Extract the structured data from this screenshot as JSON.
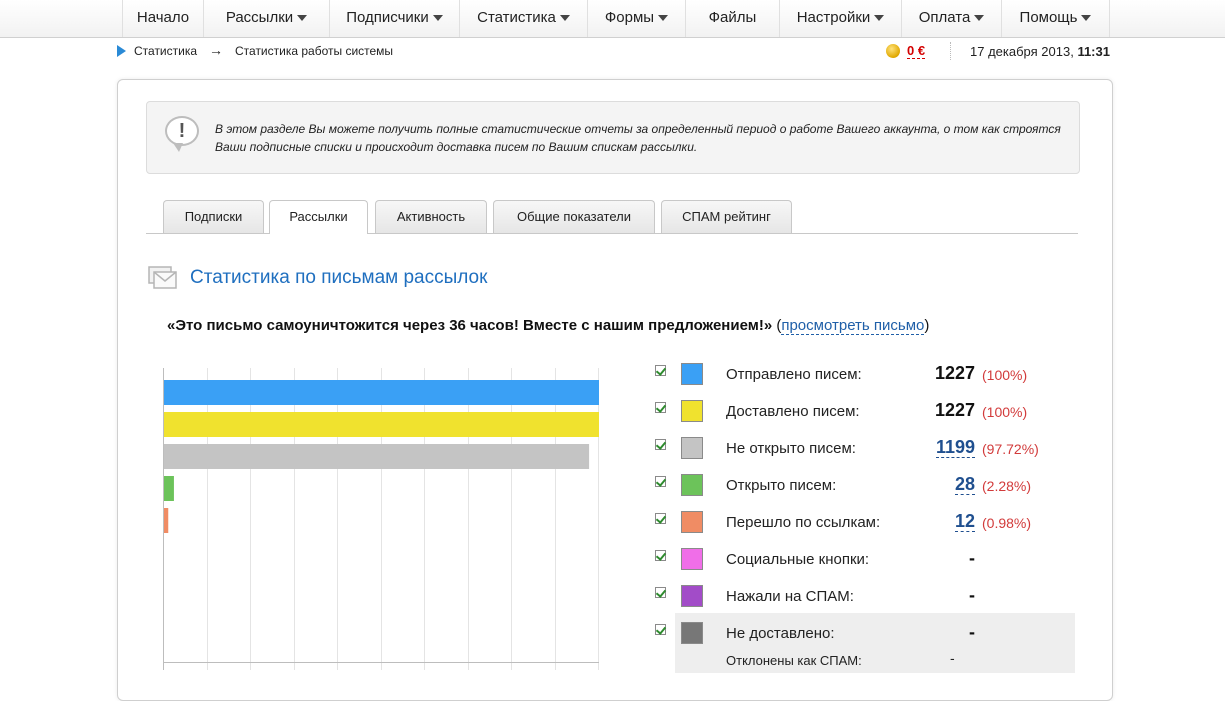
{
  "nav": {
    "items": [
      {
        "label": "Начало",
        "caret": false
      },
      {
        "label": "Рассылки",
        "caret": true
      },
      {
        "label": "Подписчики",
        "caret": true
      },
      {
        "label": "Статистика",
        "caret": true
      },
      {
        "label": "Формы",
        "caret": true
      },
      {
        "label": "Файлы",
        "caret": false
      },
      {
        "label": "Настройки",
        "caret": true
      },
      {
        "label": "Оплата",
        "caret": true
      },
      {
        "label": "Помощь",
        "caret": true
      }
    ]
  },
  "breadcrumb": {
    "first": "Статистика",
    "separator": "→",
    "second": "Статистика работы системы"
  },
  "account": {
    "balance": "0 €",
    "date": "17 декабря 2013,",
    "time": "11:31"
  },
  "info": {
    "icon": "exclamation-icon",
    "text": "В этом разделе Вы можете получить полные статистические отчеты за определенный период о работе Вашего аккаунта, о том как строятся Ваши подписные списки и происходит доставка писем по Вашим спискам рассылки."
  },
  "tabs": [
    {
      "label": "Подписки",
      "active": false
    },
    {
      "label": "Рассылки",
      "active": true
    },
    {
      "label": "Активность",
      "active": false
    },
    {
      "label": "Общие показатели",
      "active": false
    },
    {
      "label": "СПАМ рейтинг",
      "active": false
    }
  ],
  "section": {
    "title": "Статистика по письмам рассылок",
    "quote": "«Это письмо самоуничтожится через 36 часов! Вместе с нашим предложением!»",
    "view_open": "(",
    "view_link": "просмотреть письмо",
    "view_close": ")"
  },
  "colors": {
    "sent": "#3aa0f5",
    "delivered": "#f0e22e",
    "not_opened": "#c4c4c4",
    "opened": "#6cc35a",
    "clicked": "#f08c64",
    "social": "#f06ee8",
    "spam": "#a24cc8",
    "not_delivered": "#777777"
  },
  "legend": [
    {
      "label": "Отправлено писем:",
      "value": "1227",
      "pct": "(100%)",
      "link": false,
      "color": "#3aa0f5"
    },
    {
      "label": "Доставлено писем:",
      "value": "1227",
      "pct": "(100%)",
      "link": false,
      "color": "#f0e22e"
    },
    {
      "label": "Не открыто писем:",
      "value": "1199",
      "pct": "(97.72%)",
      "link": true,
      "color": "#c4c4c4"
    },
    {
      "label": "Открыто писем:",
      "value": "28",
      "pct": "(2.28%)",
      "link": true,
      "color": "#6cc35a"
    },
    {
      "label": "Перешло по ссылкам:",
      "value": "12",
      "pct": "(0.98%)",
      "link": true,
      "color": "#f08c64"
    },
    {
      "label": "Социальные кнопки:",
      "value": "-",
      "pct": "",
      "link": false,
      "color": "#f06ee8"
    },
    {
      "label": "Нажали на СПАМ:",
      "value": "-",
      "pct": "",
      "link": false,
      "color": "#a24cc8"
    },
    {
      "label": "Не доставлено:",
      "value": "-",
      "pct": "",
      "link": false,
      "color": "#777777"
    }
  ],
  "sublegend": {
    "label": "Отклонены как СПАМ:",
    "value": "-"
  },
  "chart_data": {
    "type": "bar",
    "orientation": "horizontal",
    "categories": [
      "Отправлено писем",
      "Доставлено писем",
      "Не открыто писем",
      "Открыто писем",
      "Перешло по ссылкам",
      "Социальные кнопки",
      "Нажали на СПАМ",
      "Не доставлено"
    ],
    "values": [
      1227,
      1227,
      1199,
      28,
      12,
      0,
      0,
      0
    ],
    "xlim": [
      0,
      1227
    ],
    "grid": true
  }
}
